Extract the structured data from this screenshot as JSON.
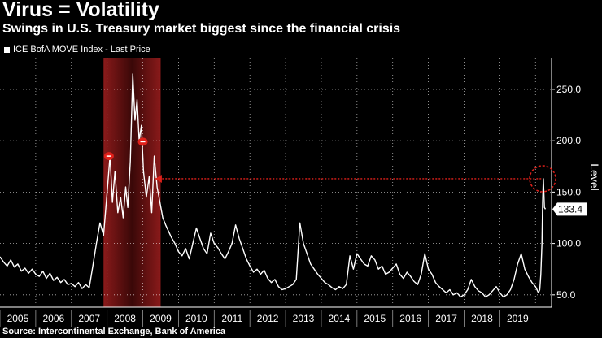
{
  "title": "Virus = Volatility",
  "subtitle": "Swings in U.S. Treasury market biggest since the financial crisis",
  "source": "Source: Intercontinental Exchange, Bank of America",
  "chart_data": {
    "type": "line",
    "legend": "ICE BofA MOVE Index - Last Price",
    "ylabel": "Level",
    "ylim": [
      38,
      280
    ],
    "yticks": [
      50,
      100,
      150,
      200,
      250
    ],
    "ytick_labels": [
      "50.0",
      "100.0",
      "150.0",
      "200.0",
      "250.0"
    ],
    "xlim": [
      2005.0,
      2020.45
    ],
    "years": [
      "2005",
      "2006",
      "2007",
      "2008",
      "2009",
      "2010",
      "2011",
      "2012",
      "2013",
      "2014",
      "2015",
      "2016",
      "2017",
      "2018",
      "2019"
    ],
    "grid": true,
    "last_value": 133.4,
    "last_value_label": "133.4",
    "shaded_region": [
      2007.9,
      2009.5
    ],
    "series": [
      {
        "name": "ICE BofA MOVE Index - Last Price",
        "points": [
          [
            2005.0,
            87
          ],
          [
            2005.1,
            82
          ],
          [
            2005.2,
            78
          ],
          [
            2005.3,
            84
          ],
          [
            2005.4,
            77
          ],
          [
            2005.5,
            80
          ],
          [
            2005.6,
            73
          ],
          [
            2005.7,
            76
          ],
          [
            2005.8,
            71
          ],
          [
            2005.9,
            75
          ],
          [
            2006.0,
            70
          ],
          [
            2006.1,
            68
          ],
          [
            2006.2,
            73
          ],
          [
            2006.3,
            66
          ],
          [
            2006.4,
            71
          ],
          [
            2006.5,
            64
          ],
          [
            2006.6,
            67
          ],
          [
            2006.7,
            62
          ],
          [
            2006.8,
            65
          ],
          [
            2006.9,
            60
          ],
          [
            2007.0,
            61
          ],
          [
            2007.1,
            58
          ],
          [
            2007.2,
            62
          ],
          [
            2007.3,
            56
          ],
          [
            2007.4,
            60
          ],
          [
            2007.5,
            57
          ],
          [
            2007.6,
            78
          ],
          [
            2007.7,
            100
          ],
          [
            2007.8,
            120
          ],
          [
            2007.9,
            108
          ],
          [
            2008.0,
            150
          ],
          [
            2008.08,
            185
          ],
          [
            2008.15,
            140
          ],
          [
            2008.22,
            170
          ],
          [
            2008.3,
            130
          ],
          [
            2008.38,
            145
          ],
          [
            2008.45,
            125
          ],
          [
            2008.52,
            155
          ],
          [
            2008.58,
            135
          ],
          [
            2008.65,
            180
          ],
          [
            2008.72,
            265
          ],
          [
            2008.78,
            220
          ],
          [
            2008.84,
            240
          ],
          [
            2008.9,
            200
          ],
          [
            2008.96,
            215
          ],
          [
            2009.02,
            170
          ],
          [
            2009.1,
            145
          ],
          [
            2009.18,
            165
          ],
          [
            2009.25,
            130
          ],
          [
            2009.32,
            185
          ],
          [
            2009.4,
            155
          ],
          [
            2009.48,
            140
          ],
          [
            2009.56,
            125
          ],
          [
            2009.64,
            118
          ],
          [
            2009.72,
            112
          ],
          [
            2009.8,
            106
          ],
          [
            2009.9,
            100
          ],
          [
            2010.0,
            92
          ],
          [
            2010.1,
            88
          ],
          [
            2010.2,
            95
          ],
          [
            2010.3,
            85
          ],
          [
            2010.4,
            100
          ],
          [
            2010.5,
            115
          ],
          [
            2010.6,
            105
          ],
          [
            2010.7,
            95
          ],
          [
            2010.8,
            90
          ],
          [
            2010.9,
            110
          ],
          [
            2011.0,
            100
          ],
          [
            2011.1,
            96
          ],
          [
            2011.2,
            90
          ],
          [
            2011.3,
            85
          ],
          [
            2011.4,
            92
          ],
          [
            2011.5,
            100
          ],
          [
            2011.6,
            118
          ],
          [
            2011.7,
            105
          ],
          [
            2011.8,
            95
          ],
          [
            2011.9,
            85
          ],
          [
            2012.0,
            78
          ],
          [
            2012.1,
            72
          ],
          [
            2012.2,
            75
          ],
          [
            2012.3,
            70
          ],
          [
            2012.4,
            74
          ],
          [
            2012.5,
            66
          ],
          [
            2012.6,
            62
          ],
          [
            2012.7,
            65
          ],
          [
            2012.8,
            58
          ],
          [
            2012.9,
            55
          ],
          [
            2013.0,
            56
          ],
          [
            2013.1,
            58
          ],
          [
            2013.2,
            60
          ],
          [
            2013.3,
            65
          ],
          [
            2013.4,
            120
          ],
          [
            2013.5,
            100
          ],
          [
            2013.6,
            90
          ],
          [
            2013.7,
            80
          ],
          [
            2013.8,
            75
          ],
          [
            2013.9,
            70
          ],
          [
            2014.0,
            66
          ],
          [
            2014.1,
            62
          ],
          [
            2014.2,
            60
          ],
          [
            2014.3,
            57
          ],
          [
            2014.4,
            55
          ],
          [
            2014.5,
            58
          ],
          [
            2014.6,
            56
          ],
          [
            2014.7,
            60
          ],
          [
            2014.8,
            88
          ],
          [
            2014.9,
            75
          ],
          [
            2015.0,
            90
          ],
          [
            2015.1,
            85
          ],
          [
            2015.2,
            80
          ],
          [
            2015.3,
            78
          ],
          [
            2015.4,
            88
          ],
          [
            2015.5,
            84
          ],
          [
            2015.6,
            75
          ],
          [
            2015.7,
            78
          ],
          [
            2015.8,
            70
          ],
          [
            2015.9,
            72
          ],
          [
            2016.0,
            76
          ],
          [
            2016.1,
            80
          ],
          [
            2016.2,
            70
          ],
          [
            2016.3,
            66
          ],
          [
            2016.4,
            72
          ],
          [
            2016.5,
            68
          ],
          [
            2016.6,
            63
          ],
          [
            2016.7,
            60
          ],
          [
            2016.8,
            70
          ],
          [
            2016.9,
            90
          ],
          [
            2017.0,
            75
          ],
          [
            2017.1,
            70
          ],
          [
            2017.2,
            62
          ],
          [
            2017.3,
            58
          ],
          [
            2017.4,
            55
          ],
          [
            2017.5,
            52
          ],
          [
            2017.6,
            55
          ],
          [
            2017.7,
            50
          ],
          [
            2017.8,
            52
          ],
          [
            2017.9,
            48
          ],
          [
            2018.0,
            50
          ],
          [
            2018.1,
            55
          ],
          [
            2018.2,
            65
          ],
          [
            2018.3,
            58
          ],
          [
            2018.4,
            54
          ],
          [
            2018.5,
            52
          ],
          [
            2018.6,
            48
          ],
          [
            2018.7,
            50
          ],
          [
            2018.8,
            54
          ],
          [
            2018.9,
            58
          ],
          [
            2019.0,
            52
          ],
          [
            2019.1,
            48
          ],
          [
            2019.2,
            50
          ],
          [
            2019.3,
            55
          ],
          [
            2019.4,
            65
          ],
          [
            2019.5,
            80
          ],
          [
            2019.6,
            90
          ],
          [
            2019.7,
            75
          ],
          [
            2019.8,
            68
          ],
          [
            2019.9,
            62
          ],
          [
            2020.0,
            58
          ],
          [
            2020.08,
            52
          ],
          [
            2020.12,
            55
          ],
          [
            2020.15,
            70
          ],
          [
            2020.18,
            100
          ],
          [
            2020.2,
            140
          ],
          [
            2020.22,
            163
          ],
          [
            2020.25,
            135
          ],
          [
            2020.28,
            133.4
          ]
        ]
      }
    ],
    "annotations": [
      {
        "type": "marker",
        "x": 2008.05,
        "y": 185
      },
      {
        "type": "marker",
        "x": 2009.0,
        "y": 199
      },
      {
        "type": "arrow",
        "from": [
          2020.16,
          163
        ],
        "to": [
          2009.35,
          163
        ]
      },
      {
        "type": "circle",
        "x": 2020.2,
        "y": 163
      }
    ]
  }
}
